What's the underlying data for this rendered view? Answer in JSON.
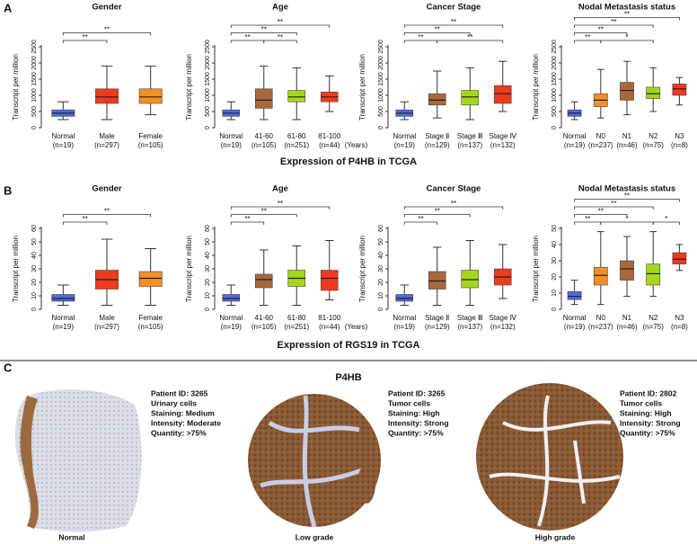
{
  "panel_a": {
    "label": "A",
    "caption": "Expression of P4HB in TCGA"
  },
  "panel_b": {
    "label": "B",
    "caption": "Expression of RGS19 in TCGA"
  },
  "chart_data": [
    {
      "type": "box",
      "title": "Gender",
      "ylabel": "Transcript per million",
      "categories": [
        "Normal",
        "Male",
        "Female"
      ],
      "n_labels": [
        "(n=19)",
        "(n=297)",
        "(n=105)"
      ],
      "colors": [
        "#5068e0",
        "#ee3a1e",
        "#f29022"
      ],
      "boxes": [
        [
          250,
          350,
          450,
          550,
          800
        ],
        [
          250,
          750,
          950,
          1200,
          1900
        ],
        [
          400,
          750,
          950,
          1200,
          1900
        ]
      ],
      "ylim": [
        0,
        2500
      ],
      "yticks": [
        0,
        500,
        1000,
        1500,
        2000,
        2500
      ],
      "significance": [
        {
          "from": 0,
          "to": 1,
          "label": "**"
        },
        {
          "from": 0,
          "to": 2,
          "label": "**"
        }
      ]
    },
    {
      "type": "box",
      "title": "Age",
      "ylabel": "Transcript per million",
      "categories": [
        "Normal",
        "41-60",
        "61-80",
        "81-100"
      ],
      "n_labels": [
        "(n=19)",
        "(n=105)",
        "(n=251)",
        "(n=44)"
      ],
      "x_unit": "(Years)",
      "colors": [
        "#5068e0",
        "#a8683a",
        "#a6d61c",
        "#ee3a1e"
      ],
      "boxes": [
        [
          250,
          350,
          450,
          550,
          800
        ],
        [
          250,
          600,
          850,
          1200,
          1900
        ],
        [
          250,
          800,
          950,
          1150,
          1850
        ],
        [
          500,
          800,
          950,
          1100,
          1600
        ]
      ],
      "ylim": [
        0,
        2500
      ],
      "yticks": [
        0,
        500,
        1000,
        1500,
        2000,
        2500
      ],
      "significance": [
        {
          "from": 0,
          "to": 1,
          "label": "**"
        },
        {
          "from": 1,
          "to": 2,
          "label": "**"
        },
        {
          "from": 0,
          "to": 2,
          "label": "**"
        },
        {
          "from": 0,
          "to": 3,
          "label": "**"
        }
      ]
    },
    {
      "type": "box",
      "title": "Cancer Stage",
      "ylabel": "Transcript per million",
      "categories": [
        "Normal",
        "Stage Ⅱ",
        "Stage Ⅲ",
        "Stage Ⅳ"
      ],
      "n_labels": [
        "(n=19)",
        "(n=129)",
        "(n=137)",
        "(n=132)"
      ],
      "colors": [
        "#5068e0",
        "#a8683a",
        "#a6d61c",
        "#ee3a1e"
      ],
      "boxes": [
        [
          250,
          350,
          450,
          550,
          800
        ],
        [
          300,
          700,
          850,
          1050,
          1750
        ],
        [
          250,
          700,
          950,
          1150,
          1850
        ],
        [
          500,
          750,
          1050,
          1300,
          2050
        ]
      ],
      "ylim": [
        0,
        2500
      ],
      "yticks": [
        0,
        500,
        1000,
        1500,
        2000,
        2500
      ],
      "significance": [
        {
          "from": 0,
          "to": 1,
          "label": "**"
        },
        {
          "from": 1,
          "to": 3,
          "label": "**"
        },
        {
          "from": 0,
          "to": 2,
          "label": "**"
        },
        {
          "from": 0,
          "to": 3,
          "label": "**"
        }
      ]
    },
    {
      "type": "box",
      "title": "Nodal Metastasis status",
      "ylabel": "Transcript per million",
      "categories": [
        "Normal",
        "N0",
        "N1",
        "N2",
        "N3"
      ],
      "n_labels": [
        "(n=19)",
        "(n=237)",
        "(n=46)",
        "(n=75)",
        "(n=8)"
      ],
      "colors": [
        "#5068e0",
        "#f29022",
        "#a8683a",
        "#a6d61c",
        "#ee3a1e"
      ],
      "boxes": [
        [
          250,
          350,
          450,
          550,
          800
        ],
        [
          300,
          650,
          850,
          1050,
          1800
        ],
        [
          400,
          850,
          1150,
          1400,
          2050
        ],
        [
          500,
          900,
          1050,
          1250,
          1850
        ],
        [
          700,
          1000,
          1200,
          1350,
          1550
        ]
      ],
      "ylim": [
        0,
        2500
      ],
      "yticks": [
        0,
        500,
        1000,
        1500,
        2000,
        2500
      ],
      "significance": [
        {
          "from": 0,
          "to": 1,
          "label": "**"
        },
        {
          "from": 1,
          "to": 3,
          "label": "*"
        },
        {
          "from": 0,
          "to": 2,
          "label": "**"
        },
        {
          "from": 0,
          "to": 3,
          "label": "**"
        },
        {
          "from": 0,
          "to": 4,
          "label": "**"
        }
      ]
    },
    {
      "type": "box",
      "title": "Gender",
      "ylabel": "Transcript per million",
      "categories": [
        "Normal",
        "Male",
        "Female"
      ],
      "n_labels": [
        "(n=19)",
        "(n=297)",
        "(n=105)"
      ],
      "colors": [
        "#5068e0",
        "#ee3a1e",
        "#f29022"
      ],
      "boxes": [
        [
          3,
          6,
          8,
          11,
          18
        ],
        [
          3,
          15,
          22,
          29,
          52
        ],
        [
          3,
          17,
          23,
          28,
          45
        ]
      ],
      "ylim": [
        0,
        60
      ],
      "yticks": [
        0,
        10,
        20,
        30,
        40,
        50,
        60
      ],
      "significance": [
        {
          "from": 0,
          "to": 1,
          "label": "**"
        },
        {
          "from": 0,
          "to": 2,
          "label": "**"
        }
      ]
    },
    {
      "type": "box",
      "title": "Age",
      "ylabel": "Transcript per million",
      "categories": [
        "Normal",
        "41-60",
        "61-80",
        "81-100"
      ],
      "n_labels": [
        "(n=19)",
        "(n=105)",
        "(n=251)",
        "(n=44)"
      ],
      "x_unit": "(Years)",
      "colors": [
        "#5068e0",
        "#a8683a",
        "#a6d61c",
        "#ee3a1e"
      ],
      "boxes": [
        [
          3,
          6,
          8,
          11,
          18
        ],
        [
          3,
          16,
          22,
          26,
          44
        ],
        [
          3,
          17,
          23,
          29,
          47
        ],
        [
          7,
          14,
          23,
          29,
          51
        ]
      ],
      "ylim": [
        0,
        60
      ],
      "yticks": [
        0,
        10,
        20,
        30,
        40,
        50,
        60
      ],
      "significance": [
        {
          "from": 0,
          "to": 1,
          "label": "**"
        },
        {
          "from": 0,
          "to": 2,
          "label": "**"
        },
        {
          "from": 0,
          "to": 3,
          "label": "**"
        }
      ]
    },
    {
      "type": "box",
      "title": "Cancer Stage",
      "ylabel": "Transcript per million",
      "categories": [
        "Normal",
        "Stage Ⅱ",
        "Stage Ⅲ",
        "Stage Ⅳ"
      ],
      "n_labels": [
        "(n=19)",
        "(n=129)",
        "(n=137)",
        "(n=132)"
      ],
      "colors": [
        "#5068e0",
        "#a8683a",
        "#a6d61c",
        "#ee3a1e"
      ],
      "boxes": [
        [
          3,
          6,
          8,
          11,
          18
        ],
        [
          3,
          15,
          21,
          28,
          46
        ],
        [
          3,
          16,
          22,
          29,
          51
        ],
        [
          8,
          18,
          24,
          30,
          48
        ]
      ],
      "ylim": [
        0,
        60
      ],
      "yticks": [
        0,
        10,
        20,
        30,
        40,
        50,
        60
      ],
      "significance": [
        {
          "from": 0,
          "to": 1,
          "label": "**"
        },
        {
          "from": 0,
          "to": 2,
          "label": "**"
        },
        {
          "from": 0,
          "to": 3,
          "label": "**"
        }
      ]
    },
    {
      "type": "box",
      "title": "Nodal Metastasis status",
      "ylabel": "Transcript per million",
      "categories": [
        "Normal",
        "N0",
        "N1",
        "N2",
        "N3"
      ],
      "n_labels": [
        "(n=19)",
        "(n=237)",
        "(n=46)",
        "(n=75)",
        "(n=8)"
      ],
      "colors": [
        "#5068e0",
        "#f29022",
        "#a8683a",
        "#a6d61c",
        "#ee3a1e"
      ],
      "boxes": [
        [
          3,
          6,
          8,
          11,
          18
        ],
        [
          3,
          15,
          21,
          26,
          48
        ],
        [
          8,
          18,
          25,
          30,
          45
        ],
        [
          8,
          15,
          22,
          28,
          48
        ],
        [
          24,
          28,
          31,
          35,
          40
        ]
      ],
      "ylim": [
        0,
        50
      ],
      "yticks": [
        0,
        10,
        20,
        30,
        40,
        50
      ],
      "significance": [
        {
          "from": 0,
          "to": 1,
          "label": "**"
        },
        {
          "from": 1,
          "to": 3,
          "label": "*"
        },
        {
          "from": 3,
          "to": 4,
          "label": "*"
        },
        {
          "from": 0,
          "to": 2,
          "label": "**"
        },
        {
          "from": 0,
          "to": 3,
          "label": "**"
        },
        {
          "from": 0,
          "to": 4,
          "label": "**"
        }
      ]
    }
  ],
  "panel_c": {
    "label": "C",
    "title": "P4HB",
    "samples": [
      {
        "caption": "Normal",
        "info": [
          "Patient ID: 3265",
          "Urinary cells",
          "Staining: Medium",
          "Intensity: Moderate",
          "Quantity:  >75%"
        ]
      },
      {
        "caption": "Low grade",
        "info": [
          "Patient ID: 3265",
          "Tumor cells",
          "Staining: High",
          "Intensity: Strong",
          "Quantity:  >75%"
        ]
      },
      {
        "caption": "High grade",
        "info": [
          "Patient ID: 2802",
          "Tumor cells",
          "Staining: High",
          "Intensity: Strong",
          "Quantity:  >75%"
        ]
      }
    ]
  }
}
